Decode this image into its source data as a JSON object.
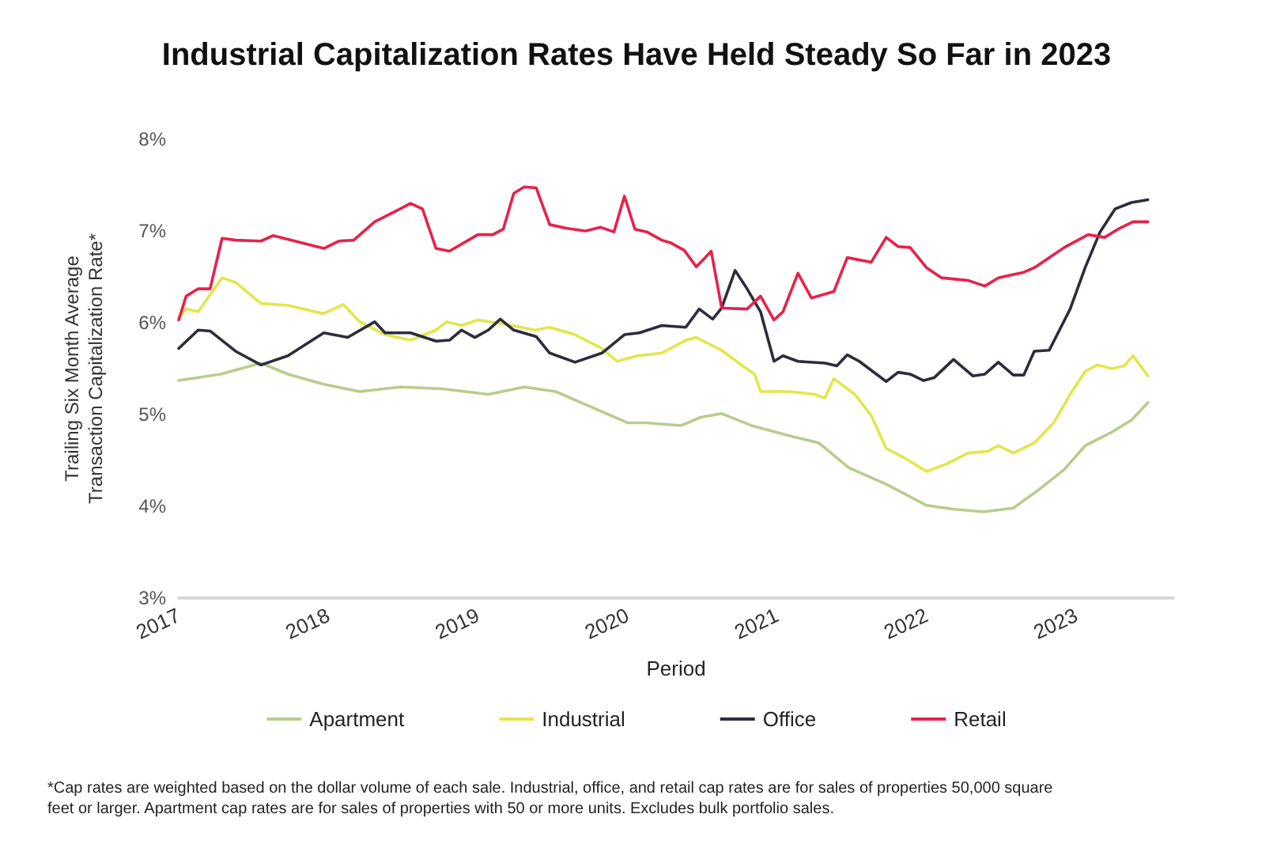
{
  "chart_data": {
    "type": "line",
    "title": "Industrial Capitalization Rates Have Held Steady So Far in 2023",
    "xlabel": "Period",
    "ylabel": "Trailing Six Month Average\nTransaction Capitalization Rate*",
    "xlim": [
      2017,
      2023.65
    ],
    "xticks": [
      2017,
      2018,
      2019,
      2020,
      2021,
      2022,
      2023
    ],
    "ylim": [
      3,
      8
    ],
    "yticks": [
      {
        "value": 3,
        "label": "3%"
      },
      {
        "value": 4,
        "label": "4%"
      },
      {
        "value": 5,
        "label": "5%"
      },
      {
        "value": 6,
        "label": "6%"
      },
      {
        "value": 7,
        "label": "7%"
      },
      {
        "value": 8,
        "label": "8%"
      }
    ],
    "grid": false,
    "legend": "bottom",
    "marker": "none",
    "line_style": "solid",
    "annotations": [
      "*Cap rates are weighted based on the dollar volume of each sale. Industrial, office, and retail cap rates are for sales of properties 50,000 square feet or larger. Apartment cap rates are for sales of properties with 50 or more units. Excludes bulk portfolio sales."
    ],
    "series": [
      {
        "name": "Apartment",
        "color": "#b8cc8c",
        "x": [
          2017.0,
          2017.28,
          2017.55,
          2017.73,
          2017.97,
          2018.21,
          2018.48,
          2018.76,
          2019.07,
          2019.31,
          2019.52,
          2019.76,
          2020.0,
          2020.12,
          2020.36,
          2020.49,
          2020.63,
          2020.83,
          2021.08,
          2021.28,
          2021.48,
          2021.73,
          2022.0,
          2022.17,
          2022.38,
          2022.58,
          2022.75,
          2022.92,
          2023.06,
          2023.23,
          2023.37,
          2023.48
        ],
        "values": [
          5.37,
          5.44,
          5.56,
          5.44,
          5.33,
          5.25,
          5.3,
          5.28,
          5.22,
          5.3,
          5.25,
          5.08,
          4.91,
          4.91,
          4.88,
          4.97,
          5.01,
          4.88,
          4.77,
          4.69,
          4.42,
          4.24,
          4.01,
          3.97,
          3.94,
          3.98,
          4.18,
          4.4,
          4.66,
          4.8,
          4.94,
          5.13
        ]
      },
      {
        "name": "Industrial",
        "color": "#e2e64c",
        "x": [
          2017.0,
          2017.05,
          2017.13,
          2017.29,
          2017.38,
          2017.55,
          2017.73,
          2017.97,
          2018.1,
          2018.21,
          2018.38,
          2018.55,
          2018.72,
          2018.79,
          2018.89,
          2019.0,
          2019.17,
          2019.38,
          2019.48,
          2019.65,
          2019.83,
          2019.93,
          2020.07,
          2020.23,
          2020.39,
          2020.46,
          2020.63,
          2020.77,
          2020.85,
          2020.89,
          2021.08,
          2021.25,
          2021.32,
          2021.38,
          2021.52,
          2021.63,
          2021.73,
          2021.86,
          2022.0,
          2022.13,
          2022.28,
          2022.41,
          2022.48,
          2022.58,
          2022.72,
          2022.85,
          2022.96,
          2023.06,
          2023.14,
          2023.24,
          2023.32,
          2023.38,
          2023.48
        ],
        "values": [
          6.06,
          6.15,
          6.12,
          6.49,
          6.44,
          6.21,
          6.19,
          6.1,
          6.2,
          6.01,
          5.87,
          5.81,
          5.92,
          6.01,
          5.97,
          6.03,
          5.99,
          5.92,
          5.95,
          5.87,
          5.72,
          5.58,
          5.64,
          5.67,
          5.81,
          5.84,
          5.7,
          5.53,
          5.44,
          5.25,
          5.25,
          5.22,
          5.18,
          5.39,
          5.22,
          4.99,
          4.63,
          4.52,
          4.38,
          4.46,
          4.58,
          4.6,
          4.66,
          4.58,
          4.69,
          4.91,
          5.22,
          5.47,
          5.54,
          5.5,
          5.53,
          5.64,
          5.42
        ]
      },
      {
        "name": "Office",
        "color": "#2c2c3c",
        "x": [
          2017.0,
          2017.13,
          2017.21,
          2017.38,
          2017.55,
          2017.73,
          2017.97,
          2018.13,
          2018.31,
          2018.38,
          2018.55,
          2018.72,
          2018.81,
          2018.89,
          2018.98,
          2019.07,
          2019.15,
          2019.24,
          2019.39,
          2019.48,
          2019.65,
          2019.83,
          2019.98,
          2020.08,
          2020.23,
          2020.39,
          2020.48,
          2020.57,
          2020.63,
          2020.72,
          2020.8,
          2020.89,
          2020.98,
          2021.04,
          2021.14,
          2021.32,
          2021.4,
          2021.47,
          2021.55,
          2021.73,
          2021.81,
          2021.89,
          2021.98,
          2022.05,
          2022.18,
          2022.31,
          2022.39,
          2022.48,
          2022.58,
          2022.65,
          2022.72,
          2022.82,
          2022.96,
          2023.06,
          2023.16,
          2023.26,
          2023.37,
          2023.48
        ],
        "values": [
          5.72,
          5.92,
          5.91,
          5.69,
          5.54,
          5.64,
          5.89,
          5.84,
          6.01,
          5.89,
          5.89,
          5.8,
          5.81,
          5.92,
          5.84,
          5.92,
          6.04,
          5.92,
          5.85,
          5.67,
          5.57,
          5.67,
          5.87,
          5.89,
          5.97,
          5.95,
          6.15,
          6.04,
          6.16,
          6.57,
          6.37,
          6.12,
          5.58,
          5.64,
          5.58,
          5.56,
          5.53,
          5.65,
          5.58,
          5.36,
          5.46,
          5.44,
          5.37,
          5.4,
          5.6,
          5.42,
          5.44,
          5.57,
          5.43,
          5.43,
          5.69,
          5.7,
          6.15,
          6.6,
          6.99,
          7.24,
          7.31,
          7.34
        ]
      },
      {
        "name": "Retail",
        "color": "#e82149",
        "x": [
          2017.0,
          2017.05,
          2017.13,
          2017.21,
          2017.29,
          2017.38,
          2017.55,
          2017.63,
          2017.97,
          2018.07,
          2018.17,
          2018.31,
          2018.42,
          2018.55,
          2018.63,
          2018.72,
          2018.81,
          2019.0,
          2019.1,
          2019.17,
          2019.24,
          2019.31,
          2019.39,
          2019.48,
          2019.59,
          2019.72,
          2019.82,
          2019.91,
          2019.98,
          2020.05,
          2020.13,
          2020.23,
          2020.29,
          2020.38,
          2020.46,
          2020.52,
          2020.56,
          2020.63,
          2020.8,
          2020.89,
          2020.98,
          2021.04,
          2021.14,
          2021.23,
          2021.38,
          2021.47,
          2021.63,
          2021.73,
          2021.81,
          2021.89,
          2022.0,
          2022.1,
          2022.28,
          2022.39,
          2022.48,
          2022.65,
          2022.72,
          2022.82,
          2022.92,
          2023.08,
          2023.19,
          2023.28,
          2023.38,
          2023.48
        ],
        "values": [
          6.03,
          6.29,
          6.37,
          6.37,
          6.92,
          6.9,
          6.89,
          6.95,
          6.81,
          6.89,
          6.9,
          7.1,
          7.19,
          7.3,
          7.24,
          6.81,
          6.78,
          6.96,
          6.96,
          7.02,
          7.41,
          7.48,
          7.47,
          7.07,
          7.03,
          7.0,
          7.04,
          6.99,
          7.38,
          7.02,
          6.99,
          6.9,
          6.87,
          6.79,
          6.61,
          6.71,
          6.78,
          6.16,
          6.15,
          6.29,
          6.03,
          6.12,
          6.54,
          6.27,
          6.34,
          6.71,
          6.66,
          6.93,
          6.83,
          6.82,
          6.6,
          6.49,
          6.46,
          6.4,
          6.49,
          6.55,
          6.6,
          6.71,
          6.82,
          6.96,
          6.93,
          7.02,
          7.1,
          7.1
        ]
      }
    ]
  }
}
